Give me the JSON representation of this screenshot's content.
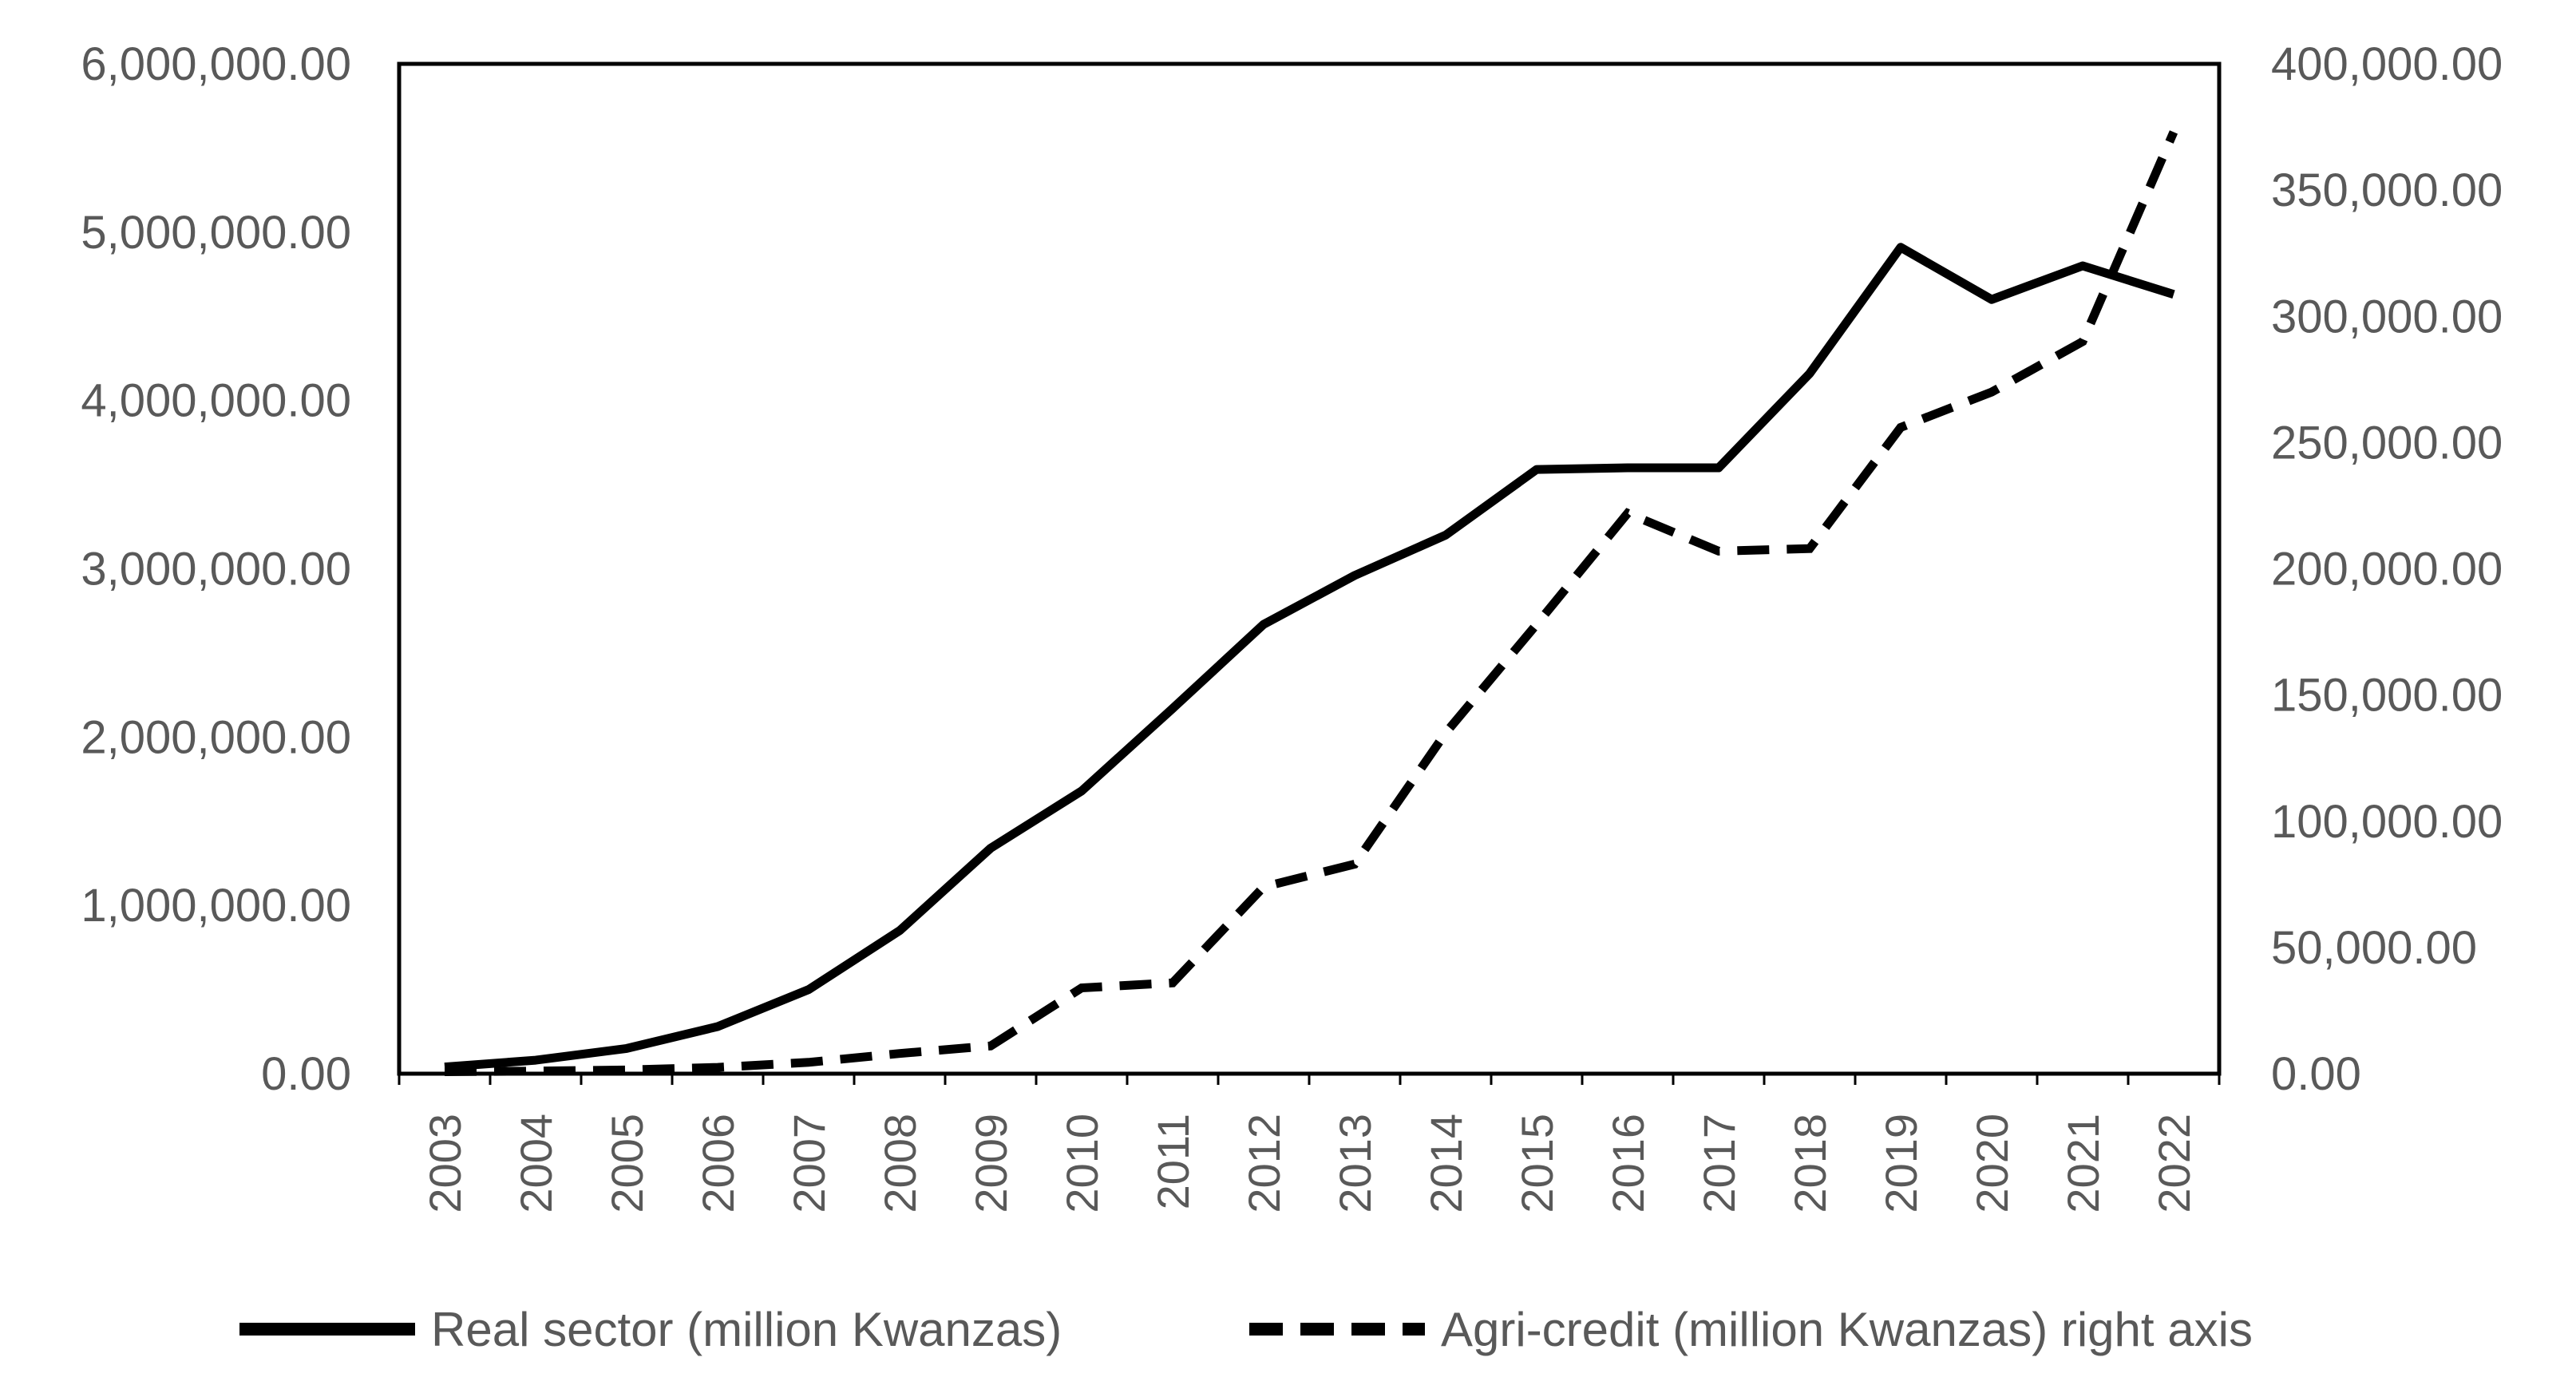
{
  "chart_data": {
    "type": "line",
    "title": "",
    "xlabel": "",
    "ylabel": "",
    "categories": [
      "2003",
      "2004",
      "2005",
      "2006",
      "2007",
      "2008",
      "2009",
      "2010",
      "2011",
      "2012",
      "2013",
      "2014",
      "2015",
      "2016",
      "2017",
      "2018",
      "2019",
      "2020",
      "2021",
      "2022"
    ],
    "series": [
      {
        "name": "Real sector (million Kwanzas)",
        "axis": "left",
        "line_style": "solid",
        "color": "#000000",
        "values": [
          40000,
          80000,
          150000,
          280000,
          500000,
          850000,
          1340000,
          1680000,
          2170000,
          2670000,
          2960000,
          3200000,
          3590000,
          3600000,
          3600000,
          4160000,
          4910000,
          4600000,
          4800000,
          4630000
        ]
      },
      {
        "name": "Agri-credit (million Kwanzas) right axis",
        "axis": "right",
        "line_style": "dashed",
        "color": "#000000",
        "values": [
          800,
          1000,
          1500,
          2500,
          4500,
          8000,
          11000,
          34000,
          36000,
          74000,
          83000,
          135000,
          178000,
          222000,
          207000,
          208000,
          256000,
          270000,
          290000,
          373000
        ]
      }
    ],
    "left_axis": {
      "ylim": [
        0,
        6000000
      ],
      "ticks": [
        0,
        1000000,
        2000000,
        3000000,
        4000000,
        5000000,
        6000000
      ],
      "tick_labels": [
        "0.00",
        "1,000,000.00",
        "2,000,000.00",
        "3,000,000.00",
        "4,000,000.00",
        "5,000,000.00",
        "6,000,000.00"
      ]
    },
    "right_axis": {
      "ylim": [
        0,
        400000
      ],
      "ticks": [
        0,
        50000,
        100000,
        150000,
        200000,
        250000,
        300000,
        350000,
        400000
      ],
      "tick_labels": [
        "0.00",
        "50,000.00",
        "100,000.00",
        "150,000.00",
        "200,000.00",
        "250,000.00",
        "300,000.00",
        "350,000.00",
        "400,000.00"
      ]
    },
    "grid": false,
    "legend": {
      "position": "bottom",
      "entries": [
        "Real sector (million Kwanzas)",
        "Agri-credit (million Kwanzas) right axis"
      ]
    }
  }
}
